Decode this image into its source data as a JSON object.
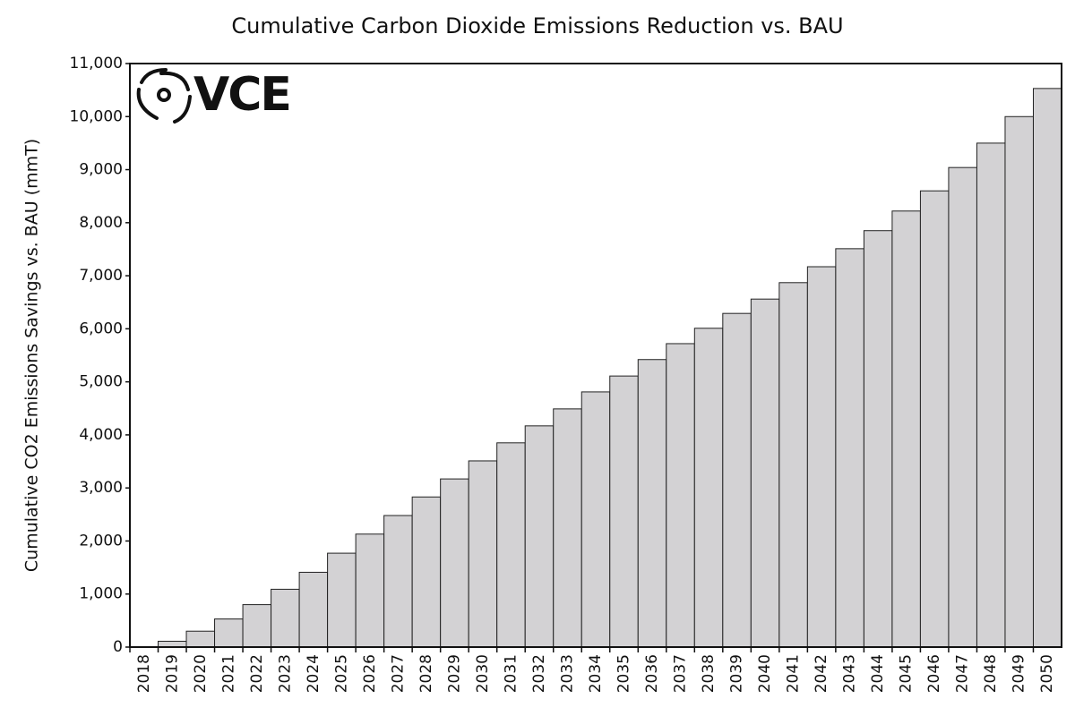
{
  "chart_data": {
    "type": "bar",
    "title": "Cumulative Carbon Dioxide Emissions Reduction vs. BAU",
    "y_label": "Cumulative CO2 Emissions Savings vs. BAU (mmT)",
    "logo": "VCE",
    "categories": [
      "2018",
      "2019",
      "2020",
      "2021",
      "2022",
      "2023",
      "2024",
      "2025",
      "2026",
      "2027",
      "2028",
      "2029",
      "2030",
      "2031",
      "2032",
      "2033",
      "2034",
      "2035",
      "2036",
      "2037",
      "2038",
      "2039",
      "2040",
      "2041",
      "2042",
      "2043",
      "2044",
      "2045",
      "2046",
      "2047",
      "2048",
      "2049",
      "2050"
    ],
    "values": [
      0,
      110,
      300,
      530,
      800,
      1090,
      1410,
      1770,
      2130,
      2480,
      2830,
      3170,
      3510,
      3850,
      4170,
      4490,
      4810,
      5110,
      5420,
      5720,
      6010,
      6290,
      6560,
      6870,
      7170,
      7510,
      7850,
      8220,
      8600,
      9040,
      9500,
      10000,
      10530
    ],
    "color": "#d3d2d4",
    "ylim": [
      0,
      11000
    ],
    "yticks": [
      0,
      {
        "value": 1000,
        "label": "1,000"
      },
      {
        "value": 2000,
        "label": "2,000"
      },
      {
        "value": 3000,
        "label": "3,000"
      },
      {
        "value": 4000,
        "label": "4,000"
      },
      {
        "value": 5000,
        "label": "5,000"
      },
      {
        "value": 6000,
        "label": "6,000"
      },
      {
        "value": 7000,
        "label": "7,000"
      },
      {
        "value": 8000,
        "label": "8,000"
      },
      {
        "value": 9000,
        "label": "9,000"
      },
      {
        "value": 10000,
        "label": "10,000"
      },
      {
        "value": 11000,
        "label": "11,000"
      }
    ],
    "grid": false
  }
}
